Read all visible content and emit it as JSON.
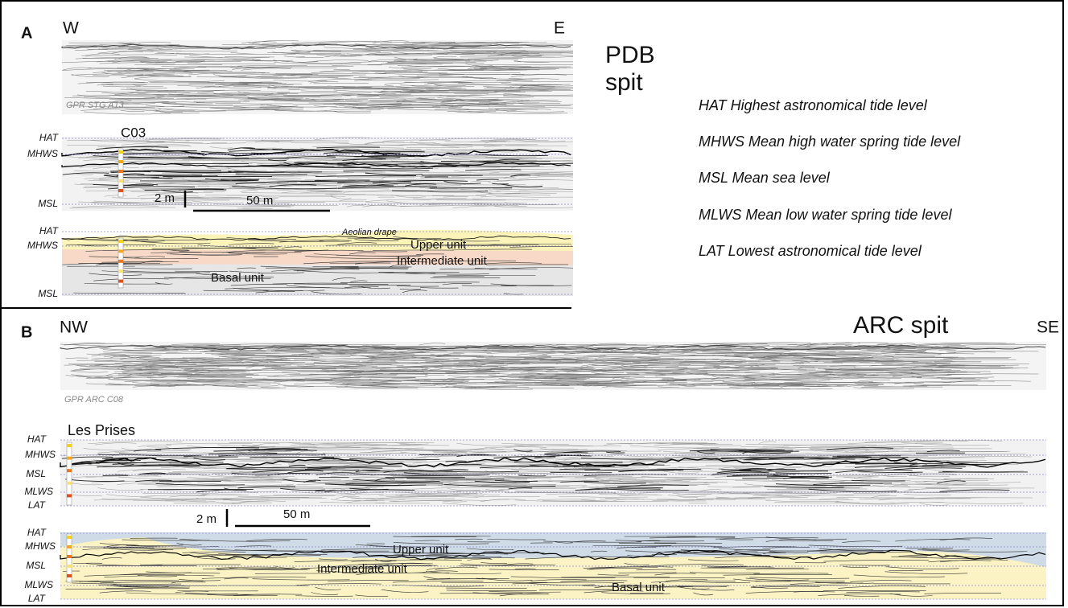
{
  "panel_a": {
    "label": "A",
    "west": "W",
    "east": "E",
    "radar_caption": "GPR STG A13",
    "core": "C03",
    "levels_interpreted": [
      "HAT",
      "MHWS",
      "MSL"
    ],
    "scale_vertical": "2 m",
    "scale_horizontal": "50 m",
    "levels_units": [
      "HAT",
      "MHWS",
      "MSL"
    ],
    "aeolian_drape": "Aeolian drape",
    "upper_unit": "Upper unit",
    "intermediate_unit": "Intermediate unit",
    "basal_unit": "Basal unit"
  },
  "site_a": [
    "PDB",
    "spit"
  ],
  "legend": [
    "HAT Highest astronomical tide level",
    "MHWS Mean high water spring tide level",
    "MSL Mean sea level",
    "MLWS Mean low water spring tide level",
    "LAT Lowest astronomical tide level"
  ],
  "panel_b": {
    "label": "B",
    "west": "NW",
    "east": "SE",
    "site": "ARC spit",
    "radar_caption": "GPR ARC C08",
    "core": "Les Prises",
    "levels_interpreted": [
      "HAT",
      "MHWS",
      "MSL",
      "MLWS",
      "LAT"
    ],
    "scale_vertical": "2 m",
    "scale_horizontal": "50 m",
    "levels_units": [
      "HAT",
      "MHWS",
      "MSL",
      "MLWS",
      "LAT"
    ],
    "upper_unit": "Upper unit",
    "intermediate_unit": "Intermediate unit",
    "basal_unit": "Basal unit"
  }
}
